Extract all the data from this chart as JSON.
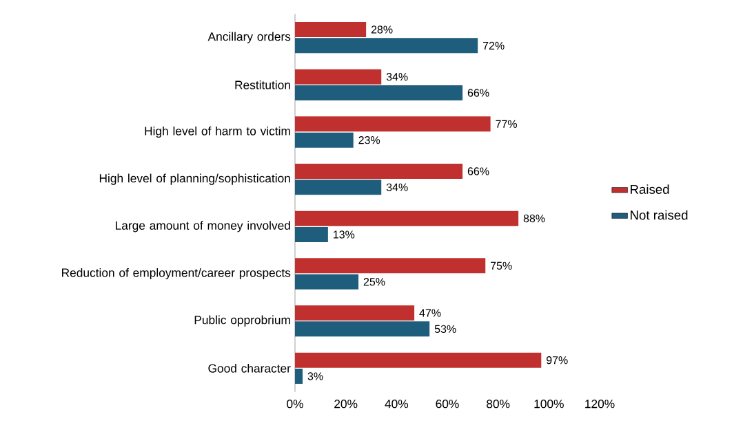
{
  "chart_data": {
    "type": "bar",
    "orientation": "horizontal",
    "categories": [
      "Ancillary orders",
      "Restitution",
      "High level of harm to victim",
      "High level of planning/sophistication",
      "Large amount of money involved",
      "Reduction of employment/career prospects",
      "Public opprobrium",
      "Good character"
    ],
    "series": [
      {
        "name": "Raised",
        "color": "#c0302e",
        "values": [
          28,
          34,
          77,
          66,
          88,
          75,
          47,
          97
        ],
        "value_labels": [
          "28%",
          "34%",
          "77%",
          "66%",
          "88%",
          "75%",
          "47%",
          "97%"
        ]
      },
      {
        "name": "Not raised",
        "color": "#1f5d7c",
        "values": [
          72,
          66,
          23,
          34,
          13,
          25,
          53,
          3
        ],
        "value_labels": [
          "72%",
          "66%",
          "23%",
          "34%",
          "13%",
          "25%",
          "53%",
          "3%"
        ]
      }
    ],
    "xlim": [
      0,
      120
    ],
    "xticks": [
      {
        "value": 0,
        "label": "0%"
      },
      {
        "value": 20,
        "label": "20%"
      },
      {
        "value": 40,
        "label": "40%"
      },
      {
        "value": 60,
        "label": "60%"
      },
      {
        "value": 80,
        "label": "80%"
      },
      {
        "value": 100,
        "label": "100%"
      },
      {
        "value": 120,
        "label": "120%"
      }
    ],
    "legend": "right"
  }
}
